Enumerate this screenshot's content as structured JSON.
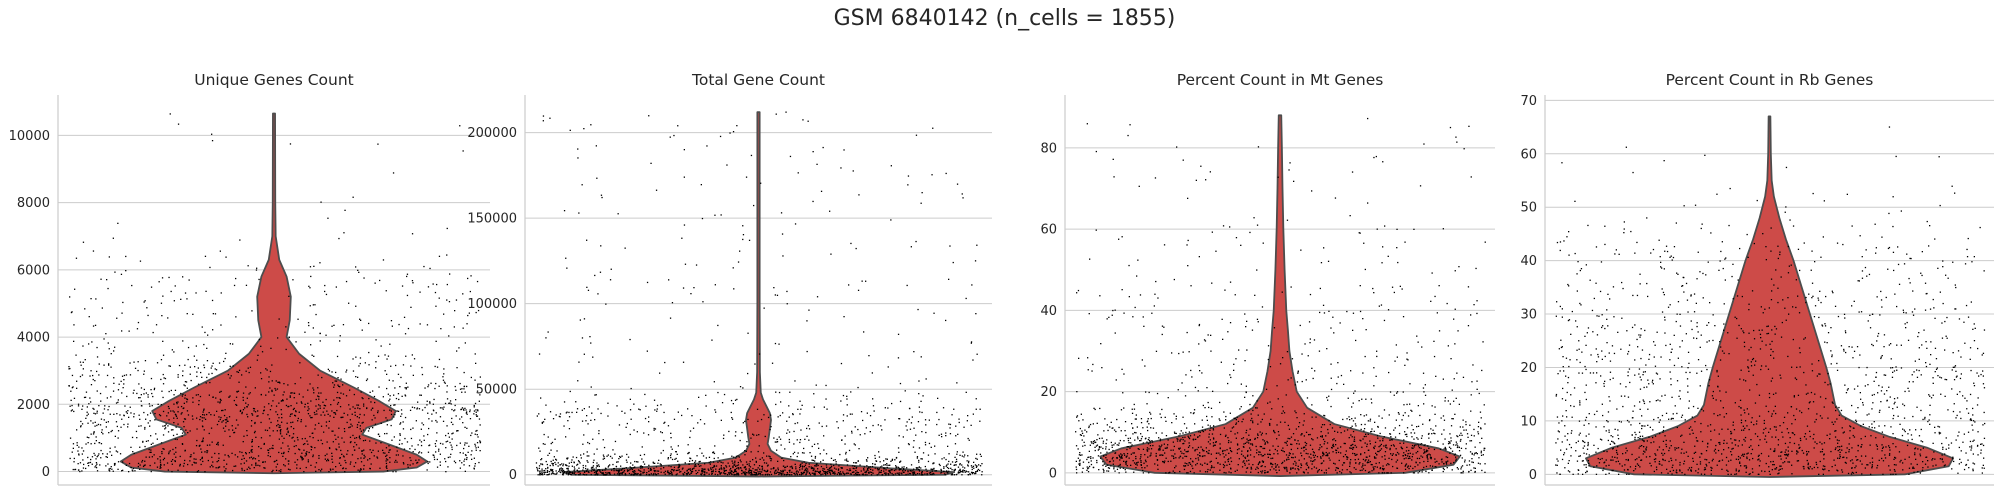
{
  "figure": {
    "title": "GSM 6840142 (n_cells = 1855)",
    "violin_color": "#cd4b48",
    "outline_color": "#4d4d4d",
    "grid_color": "#cccccc"
  },
  "chart_data": [
    {
      "type": "violin",
      "title": "Unique Genes Count",
      "ylim": [
        -400,
        11200
      ],
      "yticks": [
        0,
        2000,
        4000,
        6000,
        8000,
        10000
      ],
      "ytick_labels": [
        "0",
        "2000",
        "4000",
        "6000",
        "8000",
        "10000"
      ],
      "grid": true,
      "max_value": 10650,
      "n_points": 1855
    },
    {
      "type": "violin",
      "title": "Total Gene Count",
      "ylim": [
        -6000,
        222000
      ],
      "yticks": [
        0,
        50000,
        100000,
        150000,
        200000
      ],
      "ytick_labels": [
        "0",
        "50000",
        "100000",
        "150000",
        "200000"
      ],
      "grid": true,
      "max_value": 212000,
      "n_points": 1855
    },
    {
      "type": "violin",
      "title": "Percent Count in Mt Genes",
      "ylim": [
        -3,
        93
      ],
      "yticks": [
        0,
        20,
        40,
        60,
        80
      ],
      "ytick_labels": [
        "0",
        "20",
        "40",
        "60",
        "80"
      ],
      "grid": true,
      "max_value": 88,
      "n_points": 1855
    },
    {
      "type": "violin",
      "title": "Percent Count in Rb Genes",
      "ylim": [
        -2,
        71
      ],
      "yticks": [
        0,
        10,
        20,
        30,
        40,
        50,
        60,
        70
      ],
      "ytick_labels": [
        "0",
        "10",
        "20",
        "30",
        "40",
        "50",
        "60",
        "70"
      ],
      "grid": true,
      "max_value": 67,
      "n_points": 1855
    }
  ]
}
